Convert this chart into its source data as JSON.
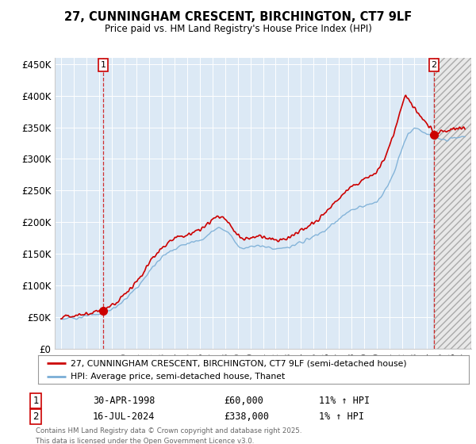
{
  "title": "27, CUNNINGHAM CRESCENT, BIRCHINGTON, CT7 9LF",
  "subtitle": "Price paid vs. HM Land Registry's House Price Index (HPI)",
  "plot_bg_color": "#dce9f5",
  "ylim": [
    0,
    460000
  ],
  "yticks": [
    0,
    50000,
    100000,
    150000,
    200000,
    250000,
    300000,
    350000,
    400000,
    450000
  ],
  "ytick_labels": [
    "£0",
    "£50K",
    "£100K",
    "£150K",
    "£200K",
    "£250K",
    "£300K",
    "£350K",
    "£400K",
    "£450K"
  ],
  "xlim_start": 1994.5,
  "xlim_end": 2027.5,
  "xticks": [
    1995,
    1996,
    1997,
    1998,
    1999,
    2000,
    2001,
    2002,
    2003,
    2004,
    2005,
    2006,
    2007,
    2008,
    2009,
    2010,
    2011,
    2012,
    2013,
    2014,
    2015,
    2016,
    2017,
    2018,
    2019,
    2020,
    2021,
    2022,
    2023,
    2024,
    2025,
    2026,
    2027
  ],
  "sale1_x": 1998.33,
  "sale1_y": 60000,
  "sale1_label": "1",
  "sale2_x": 2024.54,
  "sale2_y": 338000,
  "sale2_label": "2",
  "line_color_house": "#cc0000",
  "line_color_hpi": "#7aaed6",
  "legend_house": "27, CUNNINGHAM CRESCENT, BIRCHINGTON, CT7 9LF (semi-detached house)",
  "legend_hpi": "HPI: Average price, semi-detached house, Thanet",
  "note1_label": "1",
  "note1_date": "30-APR-1998",
  "note1_price": "£60,000",
  "note1_hpi": "11% ↑ HPI",
  "note2_label": "2",
  "note2_date": "16-JUL-2024",
  "note2_price": "£338,000",
  "note2_hpi": "1% ↑ HPI",
  "footer": "Contains HM Land Registry data © Crown copyright and database right 2025.\nThis data is licensed under the Open Government Licence v3.0.",
  "future_shade_start": 2024.54,
  "future_shade_end": 2027.5
}
